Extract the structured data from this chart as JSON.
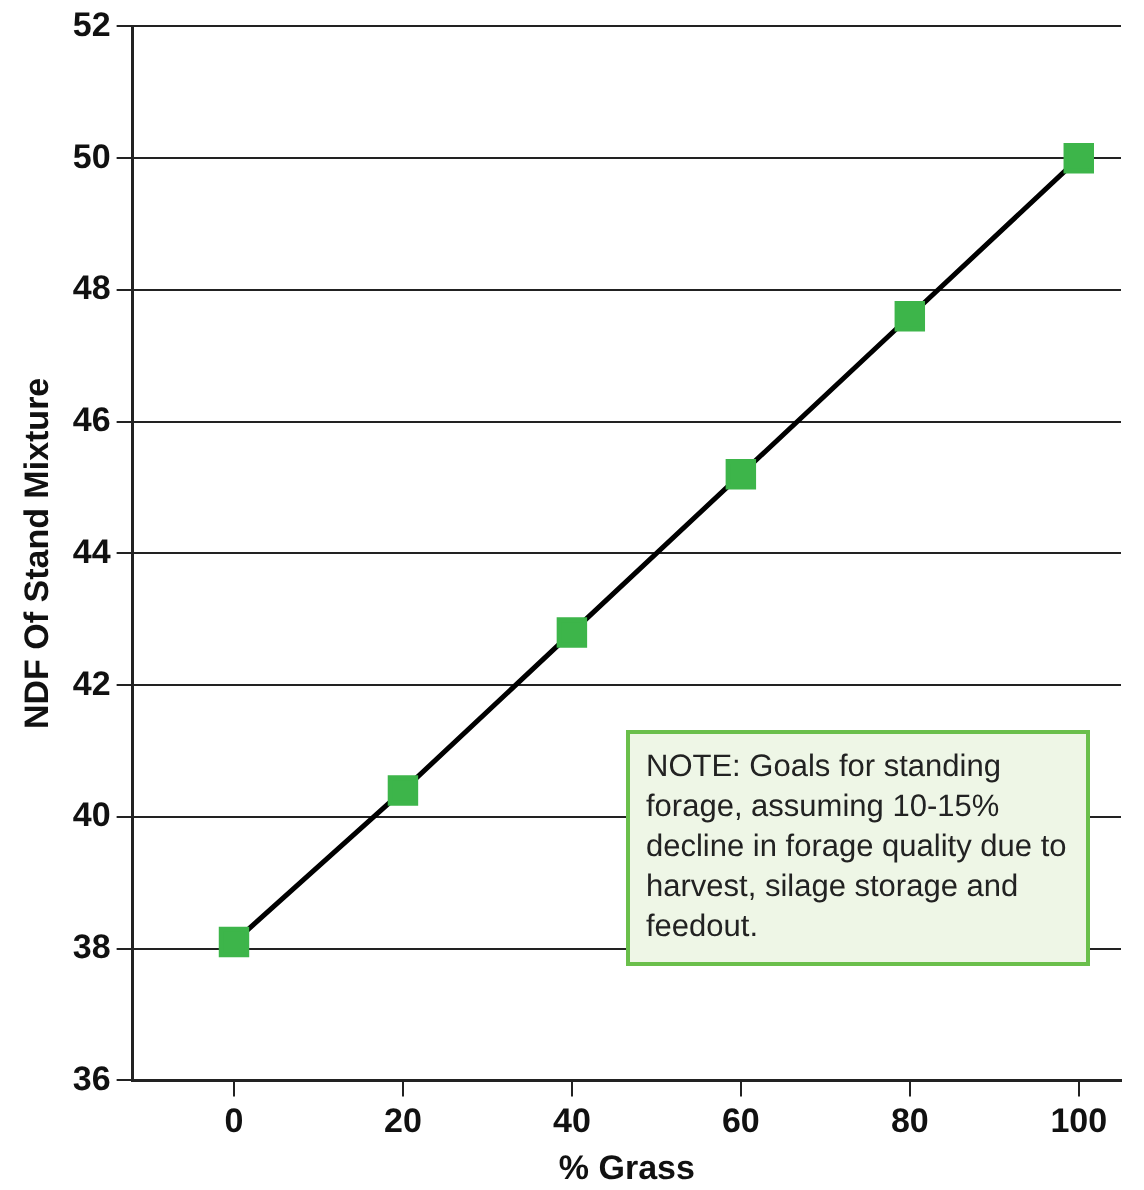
{
  "chart_data": {
    "type": "line",
    "xlabel": "% Grass",
    "ylabel": "NDF Of Stand Mixture",
    "x": [
      0,
      20,
      40,
      60,
      80,
      100
    ],
    "series": [
      {
        "color": "#3db54a",
        "values": [
          38.1,
          40.4,
          42.8,
          45.2,
          47.6,
          50.0
        ]
      }
    ],
    "xlim": [
      -12,
      105
    ],
    "xticks": [
      0,
      20,
      40,
      60,
      80,
      100
    ],
    "ylim": [
      36,
      52
    ],
    "yticks": [
      36,
      38,
      40,
      42,
      44,
      46,
      48,
      50,
      52
    ],
    "grid": "y",
    "marker": "square",
    "line_style": "solid",
    "legend": false,
    "annotations": [
      "NOTE: Goals for standing forage, assuming 10-15% decline in forage quality due to harvest, silage storage and feedout."
    ]
  }
}
